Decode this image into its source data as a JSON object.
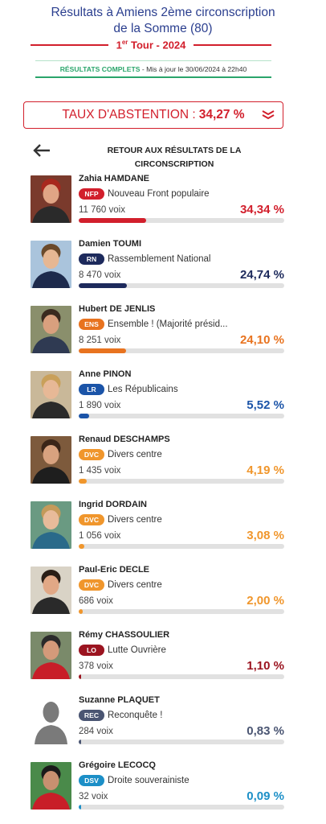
{
  "header": {
    "title_line1": "Résultats à Amiens 2ème circonscription",
    "title_line2": "de la Somme (80)",
    "tour_num": "1",
    "tour_sup": "er",
    "tour_rest": " Tour - 2024",
    "complete_label": "RÉSULTATS COMPLETS",
    "update_text": " - Mis à jour le 30/06/2024 à 22h40"
  },
  "abstention": {
    "label": "TAUX D'ABSTENTION :",
    "value": "34,27 %"
  },
  "back": {
    "line1": "RETOUR AUX RÉSULTATS DE LA",
    "line2": "CIRCONSCRIPTION"
  },
  "candidates": [
    {
      "name": "Zahia HAMDANE",
      "party_code": "NFP",
      "party": "Nouveau Front populaire",
      "votes": "11 760 voix",
      "pct": "34,34 %",
      "share": 34.34,
      "color": "#d21f2c"
    },
    {
      "name": "Damien TOUMI",
      "party_code": "RN",
      "party": "Rassemblement National",
      "votes": "8 470 voix",
      "pct": "24,74 %",
      "share": 24.74,
      "color": "#1d2a5c"
    },
    {
      "name": "Hubert DE JENLIS",
      "party_code": "ENS",
      "party": "Ensemble ! (Majorité présid...",
      "votes": "8 251 voix",
      "pct": "24,10 %",
      "share": 24.1,
      "color": "#e8731f"
    },
    {
      "name": "Anne PINON",
      "party_code": "LR",
      "party": "Les Républicains",
      "votes": "1 890 voix",
      "pct": "5,52 %",
      "share": 5.52,
      "color": "#1b54a8"
    },
    {
      "name": "Renaud DESCHAMPS",
      "party_code": "DVC",
      "party": "Divers centre",
      "votes": "1 435 voix",
      "pct": "4,19 %",
      "share": 4.19,
      "color": "#f0962c"
    },
    {
      "name": "Ingrid DORDAIN",
      "party_code": "DVC",
      "party": "Divers centre",
      "votes": "1 056 voix",
      "pct": "3,08 %",
      "share": 3.08,
      "color": "#f0962c"
    },
    {
      "name": "Paul-Eric DECLE",
      "party_code": "DVC",
      "party": "Divers centre",
      "votes": "686 voix",
      "pct": "2,00 %",
      "share": 2.0,
      "color": "#f0962c"
    },
    {
      "name": "Rémy CHASSOULIER",
      "party_code": "LO",
      "party": "Lutte Ouvrière",
      "votes": "378 voix",
      "pct": "1,10 %",
      "share": 1.1,
      "color": "#9b1420"
    },
    {
      "name": "Suzanne PLAQUET",
      "party_code": "REC",
      "party": "Reconquête !",
      "votes": "284 voix",
      "pct": "0,83 %",
      "share": 0.83,
      "color": "#4a5572"
    },
    {
      "name": "Grégoire LECOCQ",
      "party_code": "DSV",
      "party": "Droite souverainiste",
      "votes": "32 voix",
      "pct": "0,09 %",
      "share": 0.09,
      "color": "#1c8fc7"
    }
  ]
}
